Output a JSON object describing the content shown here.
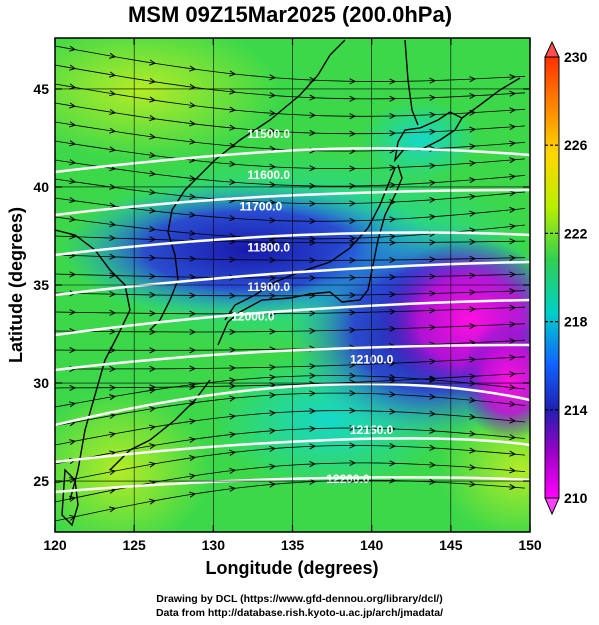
{
  "title": "MSM 09Z15Mar2025 (200.0hPa)",
  "x_axis": {
    "label": "Longitude (degrees)",
    "range": [
      120,
      150
    ],
    "ticks": [
      120,
      125,
      130,
      135,
      140,
      145,
      150
    ]
  },
  "y_axis": {
    "label": "Latitude  (degrees)",
    "range": [
      22.4,
      47.6
    ],
    "ticks": [
      25,
      30,
      35,
      40,
      45
    ]
  },
  "colorbar": {
    "range": [
      210,
      230
    ],
    "tick_labels": [
      230,
      226,
      222,
      218,
      214,
      210
    ],
    "dashed_levels": [
      226,
      222,
      218,
      214
    ],
    "colors": [
      "#ff0000",
      "#ff8c00",
      "#ffd700",
      "#c8f000",
      "#4cd94c",
      "#00d0c0",
      "#1050ff",
      "#2020b0",
      "#a000c8",
      "#ff00ff"
    ]
  },
  "contours": [
    {
      "label": "11500.0",
      "label_pos": [
        133.5,
        42.5
      ]
    },
    {
      "label": "11600.0",
      "label_pos": [
        133.5,
        40.4
      ]
    },
    {
      "label": "11700.0",
      "label_pos": [
        133.0,
        38.8
      ]
    },
    {
      "label": "11800.0",
      "label_pos": [
        133.5,
        36.7
      ]
    },
    {
      "label": "11900.0",
      "label_pos": [
        133.5,
        34.7
      ]
    },
    {
      "label": "12000.0",
      "label_pos": [
        132.5,
        33.2
      ]
    },
    {
      "label": "12100.0",
      "label_pos": [
        140.0,
        31.0
      ]
    },
    {
      "label": "12150.0",
      "label_pos": [
        140.0,
        27.4
      ]
    },
    {
      "label": "12200.0",
      "label_pos": [
        138.5,
        24.9
      ]
    }
  ],
  "credits": [
    "Drawing by DCL (https://www.gfd-dennou.org/library/dcl/)",
    "Data from http://database.rish.kyoto-u.ac.jp/arch/jmadata/"
  ]
}
